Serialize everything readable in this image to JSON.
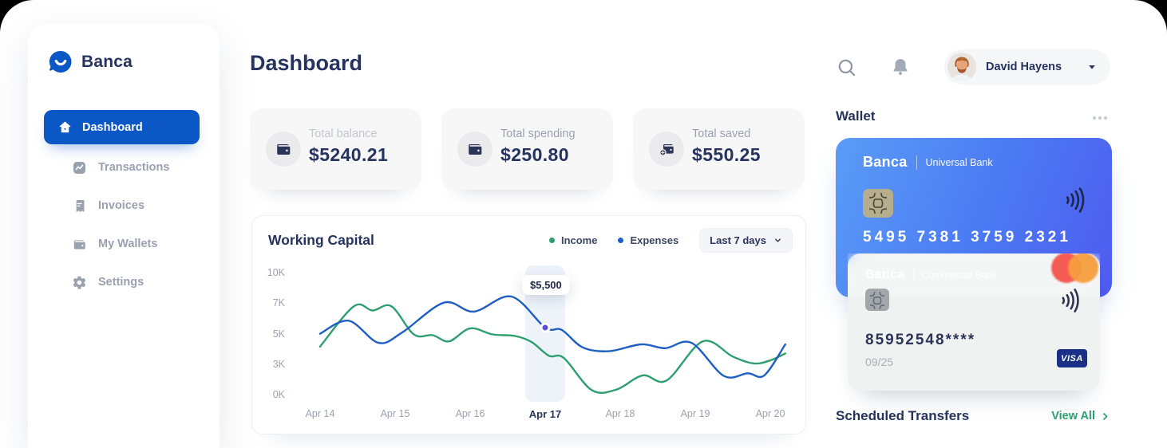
{
  "brand": {
    "name": "Banca"
  },
  "sidebar": {
    "items": [
      {
        "label": "Dashboard",
        "icon": "home-icon",
        "active": true
      },
      {
        "label": "Transactions",
        "icon": "transactions-icon",
        "active": false
      },
      {
        "label": "Invoices",
        "icon": "invoices-icon",
        "active": false
      },
      {
        "label": "My Wallets",
        "icon": "wallets-icon",
        "active": false
      },
      {
        "label": "Settings",
        "icon": "settings-icon",
        "active": false
      }
    ]
  },
  "header": {
    "title": "Dashboard",
    "user": {
      "name": "David Hayens"
    }
  },
  "stats": [
    {
      "label": "Total balance",
      "value": "$5240.21",
      "icon": "wallet-icon"
    },
    {
      "label": "Total spending",
      "value": "$250.80",
      "icon": "wallet-icon"
    },
    {
      "label": "Total saved",
      "value": "$550.25",
      "icon": "savings-wallet-icon"
    }
  ],
  "chart_data": {
    "type": "line",
    "title": "Working Capital",
    "range_selector": "Last 7 days",
    "legend": [
      {
        "name": "Income",
        "color": "#2f9e6e"
      },
      {
        "name": "Expenses",
        "color": "#1f5fc4"
      }
    ],
    "legend_position": "top-right",
    "grid": false,
    "x_ticks": [
      "Apr 14",
      "Apr 15",
      "Apr 16",
      "Apr 17",
      "Apr 18",
      "Apr 19",
      "Apr 20"
    ],
    "highlighted_x": "Apr 17",
    "y_ticks": [
      "10K",
      "7K",
      "5K",
      "3K",
      "0K"
    ],
    "y_tick_values": [
      10,
      7,
      5,
      3,
      0
    ],
    "y_unit": "K USD",
    "series": [
      {
        "name": "Income",
        "color": "#2f9e6e",
        "daily_values": [
          4250,
          6800,
          5450,
          3650,
          650,
          4000,
          3350
        ],
        "points": [
          [
            14,
            4.25
          ],
          [
            14.45,
            6.9
          ],
          [
            14.7,
            6.62
          ],
          [
            14.95,
            6.9
          ],
          [
            15.25,
            5.05
          ],
          [
            15.5,
            5.0
          ],
          [
            15.72,
            4.6
          ],
          [
            16.0,
            5.45
          ],
          [
            16.3,
            5.05
          ],
          [
            16.6,
            4.95
          ],
          [
            16.82,
            4.55
          ],
          [
            17.05,
            3.65
          ],
          [
            17.25,
            3.5
          ],
          [
            17.62,
            0.6
          ],
          [
            17.95,
            0.65
          ],
          [
            18.3,
            2.05
          ],
          [
            18.62,
            1.55
          ],
          [
            19.1,
            4.6
          ],
          [
            19.5,
            3.6
          ],
          [
            19.78,
            3.15
          ],
          [
            20.0,
            3.35
          ],
          [
            20.2,
            3.8
          ]
        ]
      },
      {
        "name": "Expenses",
        "color": "#1f5fc4",
        "daily_values": [
          5100,
          4800,
          6600,
          5500,
          4200,
          4400,
          2900
        ],
        "points": [
          [
            14,
            5.1
          ],
          [
            14.38,
            5.95
          ],
          [
            14.78,
            4.5
          ],
          [
            15.1,
            5.2
          ],
          [
            15.65,
            7.2
          ],
          [
            16.05,
            6.55
          ],
          [
            16.55,
            7.8
          ],
          [
            17.0,
            5.5
          ],
          [
            17.22,
            5.35
          ],
          [
            17.5,
            4.2
          ],
          [
            17.85,
            3.95
          ],
          [
            18.28,
            4.4
          ],
          [
            18.6,
            4.15
          ],
          [
            18.95,
            4.5
          ],
          [
            19.38,
            2.0
          ],
          [
            19.7,
            2.25
          ],
          [
            19.92,
            2.05
          ],
          [
            20.2,
            4.4
          ]
        ]
      }
    ],
    "tooltip": {
      "x": "Apr 17",
      "series": "Expenses",
      "label": "$5,500",
      "value_k": 5.5
    }
  },
  "wallet": {
    "title": "Wallet",
    "menu_icon": "ellipsis-icon",
    "cards": [
      {
        "brand": "Banca",
        "bank": "Universal Bank",
        "number": "5495 7381 3759 2321",
        "icons": [
          "chip-icon",
          "contactless-icon"
        ]
      },
      {
        "brand": "Banca",
        "bank": "Commercial Bank",
        "number": "85952548****",
        "expiry": "09/25",
        "network": "VISA",
        "icons": [
          "chip-icon",
          "contactless-icon",
          "mastercard-icon"
        ]
      }
    ]
  },
  "transfers": {
    "title": "Scheduled Transfers",
    "action_label": "View All"
  },
  "colors": {
    "accent_blue": "#0b57c5",
    "navy_text": "#27335f",
    "income_green": "#2f9e6e",
    "expense_blue": "#1f5fc4",
    "marker_purple": "#5b50c8",
    "link_green": "#2aa06e",
    "visa_badge": "#1c2f87",
    "mastercard_red": "#f4524b",
    "mastercard_orange": "#f59d3d",
    "card_gradient_start": "#5a9cf7",
    "card_gradient_end": "#4f5bef",
    "highlight_band": "#eef3fa"
  }
}
